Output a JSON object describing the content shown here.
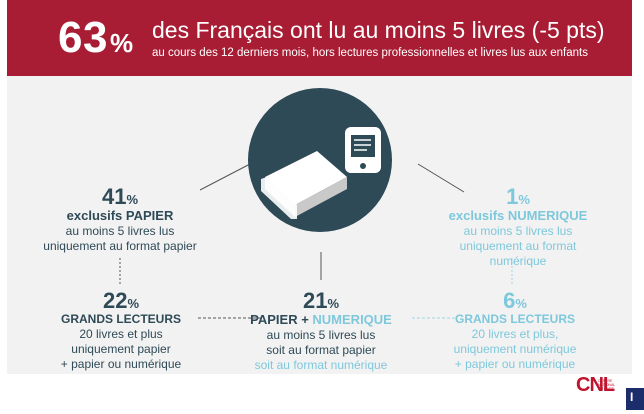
{
  "header": {
    "big_number": "63",
    "big_symbol": "%",
    "title": "des Français ont lu au moins 5 livres (-5 pts)",
    "subtitle": "au cours des 12 derniers mois, hors lectures professionnelles et livres lus aux enfants"
  },
  "colors": {
    "banner": "#a81d34",
    "dark_teal": "#2f4a57",
    "light_blue": "#7ec8dc",
    "panel": "#f2f2f2"
  },
  "stats": {
    "paper_only": {
      "number": "41",
      "unit": "%",
      "label": "exclusifs PAPIER",
      "desc_line1": "au moins 5 livres lus",
      "desc_line2": "uniquement au format papier"
    },
    "digital_only": {
      "number": "1",
      "unit": "%",
      "label": "exclusifs NUMERIQUE",
      "desc_line1": "au moins 5 livres lus",
      "desc_line2": "uniquement au format numérique"
    },
    "big_paper": {
      "number": "22",
      "unit": "%",
      "label": "GRANDS LECTEURS",
      "desc_line1": "20 livres et plus",
      "desc_line2": "uniquement papier",
      "desc_line3": "+ papier ou numérique"
    },
    "mixed": {
      "number": "21",
      "unit": "%",
      "label_part1": "PAPIER",
      "label_plus": " + ",
      "label_part2": "NUMERIQUE",
      "desc_line1": "au moins 5 livres lus",
      "desc_line2": "soit au format papier",
      "desc_line3": "soit au format numérique"
    },
    "big_digital": {
      "number": "6",
      "unit": "%",
      "label": "GRANDS LECTEURS",
      "desc_line1": "20 livres et plus,",
      "desc_line2": "uniquement numérique",
      "desc_line3": "+ papier ou numérique"
    }
  },
  "icons": {
    "book": "book-icon",
    "ereader": "ereader-reader-icon"
  },
  "logo": {
    "text": "CNL",
    "small": "CENTRE NATIONAL DU LIVRE",
    "partner": "I"
  }
}
